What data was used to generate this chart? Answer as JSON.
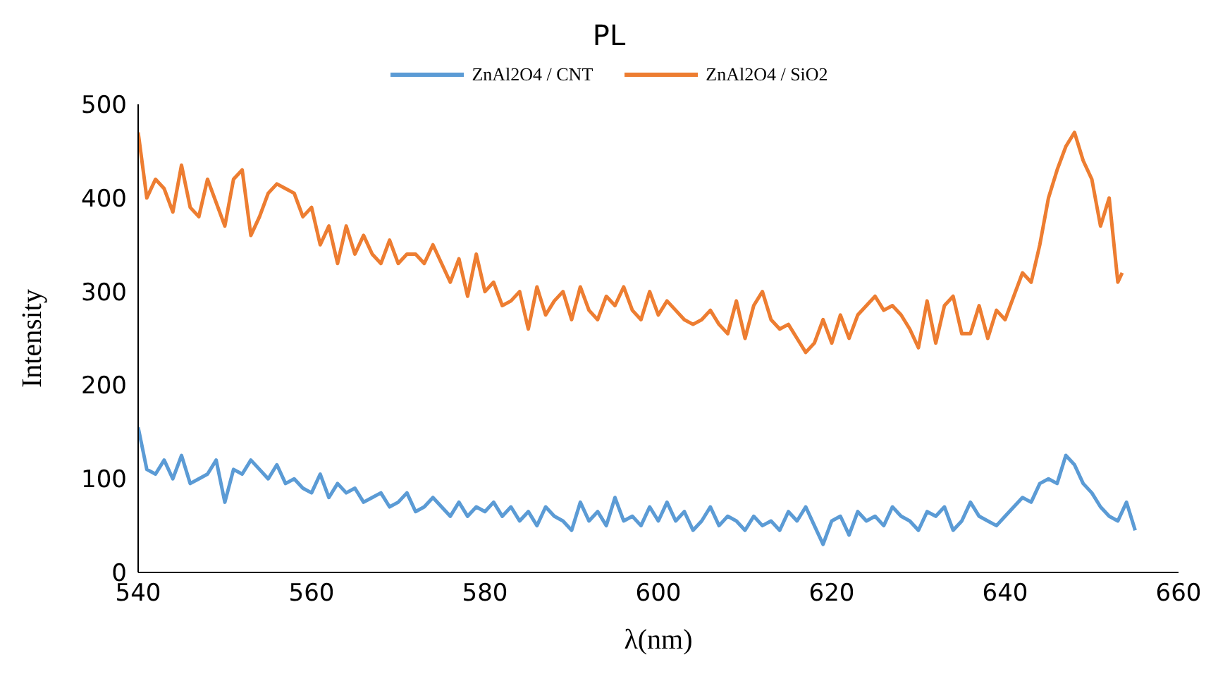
{
  "chart_data": {
    "type": "line",
    "title": "PL",
    "xlabel": "λ(nm)",
    "ylabel": "Intensity",
    "xlim": [
      540,
      660
    ],
    "xticks": [
      540,
      560,
      580,
      600,
      620,
      640,
      660
    ],
    "ylim": [
      0,
      500
    ],
    "yticks": [
      0,
      100,
      200,
      300,
      400,
      500
    ],
    "grid": false,
    "legend": "top",
    "marker": "none",
    "line_style": "solid",
    "series": [
      {
        "name": "ZnAl2O4 / CNT",
        "color": "#5b9bd5",
        "x": [
          540,
          541,
          542,
          543,
          544,
          545,
          546,
          547,
          548,
          549,
          550,
          551,
          552,
          553,
          554,
          555,
          556,
          557,
          558,
          559,
          560,
          561,
          562,
          563,
          564,
          565,
          566,
          567,
          568,
          569,
          570,
          571,
          572,
          573,
          574,
          575,
          576,
          577,
          578,
          579,
          580,
          581,
          582,
          583,
          584,
          585,
          586,
          587,
          588,
          589,
          590,
          591,
          592,
          593,
          594,
          595,
          596,
          597,
          598,
          599,
          600,
          601,
          602,
          603,
          604,
          605,
          606,
          607,
          608,
          609,
          610,
          611,
          612,
          613,
          614,
          615,
          616,
          617,
          618,
          619,
          620,
          621,
          622,
          623,
          624,
          625,
          626,
          627,
          628,
          629,
          630,
          631,
          632,
          633,
          634,
          635,
          636,
          637,
          638,
          639,
          640,
          641,
          642,
          643,
          644,
          645,
          646,
          647,
          648,
          649,
          650,
          651,
          652,
          653,
          654,
          655
        ],
        "values": [
          155,
          110,
          105,
          120,
          100,
          125,
          95,
          100,
          105,
          120,
          75,
          110,
          105,
          120,
          110,
          100,
          115,
          95,
          100,
          90,
          85,
          105,
          80,
          95,
          85,
          90,
          75,
          80,
          85,
          70,
          75,
          85,
          65,
          70,
          80,
          70,
          60,
          75,
          60,
          70,
          65,
          75,
          60,
          70,
          55,
          65,
          50,
          70,
          60,
          55,
          45,
          75,
          55,
          65,
          50,
          80,
          55,
          60,
          50,
          70,
          55,
          75,
          55,
          65,
          45,
          55,
          70,
          50,
          60,
          55,
          45,
          60,
          50,
          55,
          45,
          65,
          55,
          70,
          50,
          30,
          55,
          60,
          40,
          65,
          55,
          60,
          50,
          70,
          60,
          55,
          45,
          65,
          60,
          70,
          45,
          55,
          75,
          60,
          55,
          50,
          60,
          70,
          80,
          75,
          95,
          100,
          95,
          125,
          115,
          95,
          85,
          70,
          60,
          55,
          75,
          45
        ]
      },
      {
        "name": "ZnAl2O4 / SiO2",
        "color": "#ed7d31",
        "x": [
          540,
          541,
          542,
          543,
          544,
          545,
          546,
          547,
          548,
          549,
          550,
          551,
          552,
          553,
          554,
          555,
          556,
          557,
          558,
          559,
          560,
          561,
          562,
          563,
          564,
          565,
          566,
          567,
          568,
          569,
          570,
          571,
          572,
          573,
          574,
          575,
          576,
          577,
          578,
          579,
          580,
          581,
          582,
          583,
          584,
          585,
          586,
          587,
          588,
          589,
          590,
          591,
          592,
          593,
          594,
          595,
          596,
          597,
          598,
          599,
          600,
          601,
          602,
          603,
          604,
          605,
          606,
          607,
          608,
          609,
          610,
          611,
          612,
          613,
          614,
          615,
          616,
          617,
          618,
          619,
          620,
          621,
          622,
          623,
          624,
          625,
          626,
          627,
          628,
          629,
          630,
          631,
          632,
          633,
          634,
          635,
          636,
          637,
          638,
          639,
          640,
          641,
          642,
          643,
          644,
          645,
          646,
          647,
          648,
          649,
          650,
          651,
          652,
          653,
          653.5
        ],
        "values": [
          470,
          400,
          420,
          410,
          385,
          435,
          390,
          380,
          420,
          395,
          370,
          420,
          430,
          360,
          380,
          405,
          415,
          410,
          405,
          380,
          390,
          350,
          370,
          330,
          370,
          340,
          360,
          340,
          330,
          355,
          330,
          340,
          340,
          330,
          350,
          330,
          310,
          335,
          295,
          340,
          300,
          310,
          285,
          290,
          300,
          260,
          305,
          275,
          290,
          300,
          270,
          305,
          280,
          270,
          295,
          285,
          305,
          280,
          270,
          300,
          275,
          290,
          280,
          270,
          265,
          270,
          280,
          265,
          255,
          290,
          250,
          285,
          300,
          270,
          260,
          265,
          250,
          235,
          245,
          270,
          245,
          275,
          250,
          275,
          285,
          295,
          280,
          285,
          275,
          260,
          240,
          290,
          245,
          285,
          295,
          255,
          255,
          285,
          250,
          280,
          270,
          295,
          320,
          310,
          350,
          400,
          430,
          455,
          470,
          440,
          420,
          370,
          400,
          310,
          320
        ]
      }
    ]
  }
}
